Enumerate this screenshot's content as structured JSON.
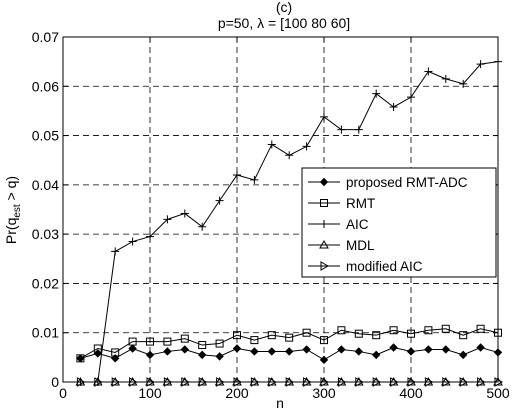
{
  "chart_data": {
    "type": "line",
    "title_prefix": "p=50, ",
    "title_lambda": "λ",
    "title_suffix": " = [100   80   60]",
    "figure_label": "(c)",
    "xlabel": "n",
    "ylabel_main": "Pr(q",
    "ylabel_sub": "est",
    "ylabel_tail": " > q)",
    "xlim": [
      0,
      500
    ],
    "ylim": [
      0,
      0.07
    ],
    "x_ticks": [
      0,
      100,
      200,
      300,
      400,
      500
    ],
    "x_tick_labels": [
      "0",
      "100",
      "200",
      "300",
      "400",
      "500"
    ],
    "y_ticks": [
      0,
      0.01,
      0.02,
      0.03,
      0.04,
      0.05,
      0.06,
      0.07
    ],
    "y_tick_labels": [
      "0",
      "0.01",
      "0.02",
      "0.03",
      "0.04",
      "0.05",
      "0.06",
      "0.07"
    ],
    "grid": true,
    "legend_position": "right",
    "x": [
      20,
      40,
      60,
      80,
      100,
      120,
      140,
      160,
      180,
      200,
      220,
      240,
      260,
      280,
      300,
      320,
      340,
      360,
      380,
      400,
      420,
      440,
      460,
      480,
      500
    ],
    "series": [
      {
        "name": "proposed RMT-ADC",
        "marker": "diamond",
        "values": [
          0.0048,
          0.0058,
          0.0048,
          0.0068,
          0.0055,
          0.0062,
          0.0066,
          0.0055,
          0.0052,
          0.0068,
          0.0062,
          0.0062,
          0.0062,
          0.0066,
          0.0045,
          0.0066,
          0.0062,
          0.0055,
          0.007,
          0.0062,
          0.0066,
          0.0066,
          0.0055,
          0.007,
          0.006
        ]
      },
      {
        "name": "RMT",
        "marker": "square",
        "values": [
          0.0048,
          0.0068,
          0.006,
          0.0082,
          0.0082,
          0.0082,
          0.0088,
          0.0075,
          0.0078,
          0.0095,
          0.0085,
          0.0095,
          0.009,
          0.01,
          0.0085,
          0.0105,
          0.0098,
          0.0095,
          0.0105,
          0.0098,
          0.0105,
          0.0108,
          0.0095,
          0.0108,
          0.01
        ]
      },
      {
        "name": "AIC",
        "marker": "plus",
        "values": [
          0.0,
          0.0,
          0.0265,
          0.0285,
          0.0295,
          0.033,
          0.0342,
          0.0315,
          0.0368,
          0.042,
          0.041,
          0.0482,
          0.046,
          0.0478,
          0.0538,
          0.0512,
          0.0512,
          0.0585,
          0.0558,
          0.0578,
          0.063,
          0.0615,
          0.0605,
          0.0645,
          0.065
        ]
      },
      {
        "name": "MDL",
        "marker": "triangle-up",
        "values": [
          0,
          0,
          0,
          0,
          0,
          0,
          0,
          0,
          0,
          0,
          0,
          0,
          0,
          0,
          0,
          0,
          0,
          0,
          0,
          0,
          0,
          0,
          0,
          0,
          0
        ]
      },
      {
        "name": "modified AIC",
        "marker": "triangle-right",
        "values": [
          0,
          0,
          0,
          0,
          0,
          0,
          0,
          0,
          0,
          0,
          0,
          0,
          0,
          0,
          0,
          0,
          0,
          0,
          0,
          0,
          0,
          0,
          0,
          0,
          0
        ]
      }
    ]
  }
}
